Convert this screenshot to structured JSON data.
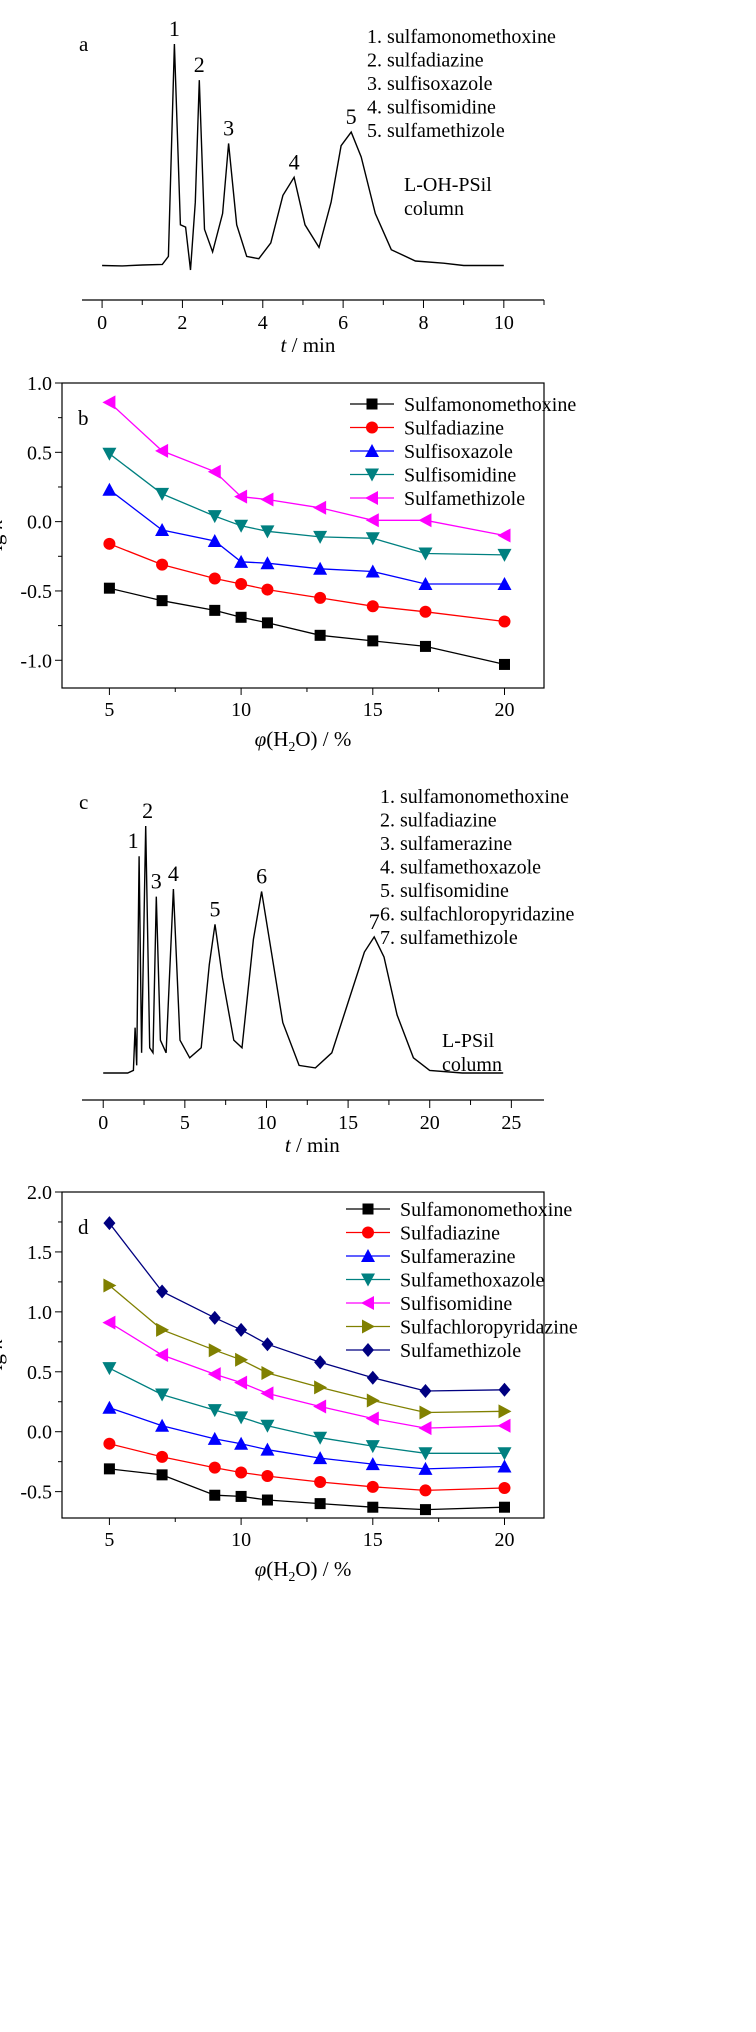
{
  "chart_data": [
    {
      "panel": "a",
      "type": "line",
      "title": "",
      "xlabel_italic": "t",
      "xlabel_rest": " / min",
      "ylabel": "",
      "xlim": [
        -0.5,
        11
      ],
      "xticks": [
        0,
        2,
        4,
        6,
        8,
        10
      ],
      "column_note": [
        "L-OH-PSil",
        "column"
      ],
      "legend": [
        "1. sulfamonomethoxine",
        "2. sulfadiazine",
        "3. sulfisoxazole",
        "4. sulfisomidine",
        "5. sulfamethizole"
      ],
      "baseline": 0.02,
      "points": [
        [
          0,
          0.02
        ],
        [
          0.5,
          0.018
        ],
        [
          1,
          0.022
        ],
        [
          1.5,
          0.025
        ],
        [
          1.65,
          0.06
        ],
        [
          1.8,
          1.0
        ],
        [
          1.95,
          0.2
        ],
        [
          2.08,
          0.19
        ],
        [
          2.2,
          0.0
        ],
        [
          2.32,
          0.3
        ],
        [
          2.42,
          0.84
        ],
        [
          2.55,
          0.18
        ],
        [
          2.75,
          0.08
        ],
        [
          3.0,
          0.25
        ],
        [
          3.15,
          0.56
        ],
        [
          3.35,
          0.2
        ],
        [
          3.6,
          0.06
        ],
        [
          3.9,
          0.05
        ],
        [
          4.2,
          0.12
        ],
        [
          4.5,
          0.33
        ],
        [
          4.78,
          0.41
        ],
        [
          5.05,
          0.2
        ],
        [
          5.4,
          0.1
        ],
        [
          5.7,
          0.3
        ],
        [
          5.95,
          0.55
        ],
        [
          6.2,
          0.61
        ],
        [
          6.45,
          0.5
        ],
        [
          6.8,
          0.25
        ],
        [
          7.2,
          0.09
        ],
        [
          7.8,
          0.04
        ],
        [
          8.5,
          0.03
        ],
        [
          9,
          0.02
        ],
        [
          10,
          0.02
        ]
      ],
      "peaks": [
        {
          "label": "1",
          "t": 1.8,
          "h": 1.0
        },
        {
          "label": "2",
          "t": 2.42,
          "h": 0.84
        },
        {
          "label": "3",
          "t": 3.15,
          "h": 0.56
        },
        {
          "label": "4",
          "t": 4.78,
          "h": 0.41
        },
        {
          "label": "5",
          "t": 6.2,
          "h": 0.61
        }
      ]
    },
    {
      "panel": "b",
      "type": "line",
      "xlabel": "φ(H2O) / %",
      "ylabel": "lg k",
      "xlim": [
        3.2,
        21.5
      ],
      "ylim": [
        -1.2,
        1.0
      ],
      "xticks": [
        5,
        10,
        15,
        20
      ],
      "yticks": [
        "1.0",
        "0.5",
        "0.0",
        "-0.5",
        "-1.0"
      ],
      "ytick_values": [
        1.0,
        0.5,
        0.0,
        -0.5,
        -1.0
      ],
      "x": [
        5,
        7,
        9,
        10,
        11,
        13,
        15,
        17,
        20
      ],
      "series": [
        {
          "name": "Sulfamonomethoxine",
          "color": "#000000",
          "marker": "square",
          "values": [
            -0.48,
            -0.57,
            -0.64,
            -0.69,
            -0.73,
            -0.82,
            -0.86,
            -0.9,
            -1.03
          ]
        },
        {
          "name": "Sulfadiazine",
          "color": "#ff0000",
          "marker": "circle",
          "values": [
            -0.16,
            -0.31,
            -0.41,
            -0.45,
            -0.49,
            -0.55,
            -0.61,
            -0.65,
            -0.72
          ]
        },
        {
          "name": "Sulfisoxazole",
          "color": "#0000ff",
          "marker": "triangle-up",
          "values": [
            0.23,
            -0.06,
            -0.14,
            -0.29,
            -0.3,
            -0.34,
            -0.36,
            -0.45,
            -0.45
          ]
        },
        {
          "name": "Sulfisomidine",
          "color": "#008080",
          "marker": "triangle-down",
          "values": [
            0.49,
            0.2,
            0.04,
            -0.03,
            -0.07,
            -0.11,
            -0.12,
            -0.23,
            -0.24
          ]
        },
        {
          "name": "Sulfamethizole",
          "color": "#ff00ff",
          "marker": "triangle-left",
          "values": [
            0.86,
            0.51,
            0.36,
            0.18,
            0.16,
            0.1,
            0.01,
            0.01,
            -0.1
          ]
        }
      ]
    },
    {
      "panel": "c",
      "type": "line",
      "xlabel_italic": "t",
      "xlabel_rest": " / min",
      "ylabel": "",
      "xlim": [
        -1.3,
        27
      ],
      "xticks": [
        0,
        5,
        10,
        15,
        20,
        25
      ],
      "column_note": [
        "L-PSil",
        "column"
      ],
      "legend": [
        "1. sulfamonomethoxine",
        "2. sulfadiazine",
        "3. sulfamerazine",
        "4. sulfamethoxazole",
        "5. sulfisomidine",
        "6. sulfachloropyridazine",
        "7. sulfamethizole"
      ],
      "baseline": 0.02,
      "points": [
        [
          0,
          0.02
        ],
        [
          1.5,
          0.02
        ],
        [
          1.85,
          0.03
        ],
        [
          1.95,
          0.2
        ],
        [
          2.05,
          0.05
        ],
        [
          2.2,
          0.88
        ],
        [
          2.35,
          0.1
        ],
        [
          2.6,
          1.0
        ],
        [
          2.85,
          0.12
        ],
        [
          3.05,
          0.1
        ],
        [
          3.25,
          0.72
        ],
        [
          3.5,
          0.15
        ],
        [
          3.85,
          0.1
        ],
        [
          4.3,
          0.75
        ],
        [
          4.7,
          0.15
        ],
        [
          5.3,
          0.08
        ],
        [
          6.0,
          0.12
        ],
        [
          6.5,
          0.45
        ],
        [
          6.85,
          0.61
        ],
        [
          7.3,
          0.4
        ],
        [
          8.0,
          0.15
        ],
        [
          8.5,
          0.12
        ],
        [
          9.2,
          0.55
        ],
        [
          9.7,
          0.74
        ],
        [
          10.3,
          0.5
        ],
        [
          11.0,
          0.22
        ],
        [
          12.0,
          0.05
        ],
        [
          13.0,
          0.04
        ],
        [
          14.0,
          0.1
        ],
        [
          15.0,
          0.3
        ],
        [
          16.0,
          0.5
        ],
        [
          16.6,
          0.56
        ],
        [
          17.2,
          0.48
        ],
        [
          18.0,
          0.25
        ],
        [
          19.0,
          0.08
        ],
        [
          20.0,
          0.03
        ],
        [
          22.0,
          0.02
        ],
        [
          24.5,
          0.02
        ]
      ],
      "peaks": [
        {
          "label": "1",
          "t": 2.2,
          "h": 0.88
        },
        {
          "label": "2",
          "t": 2.6,
          "h": 1.0
        },
        {
          "label": "3",
          "t": 3.25,
          "h": 0.72
        },
        {
          "label": "4",
          "t": 4.3,
          "h": 0.75
        },
        {
          "label": "5",
          "t": 6.85,
          "h": 0.61
        },
        {
          "label": "6",
          "t": 9.7,
          "h": 0.74
        },
        {
          "label": "7",
          "t": 16.6,
          "h": 0.56
        }
      ]
    },
    {
      "panel": "d",
      "type": "line",
      "xlabel": "φ(H2O) / %",
      "ylabel": "lg k",
      "xlim": [
        3.2,
        21.5
      ],
      "ylim": [
        -0.72,
        2.0
      ],
      "xticks": [
        5,
        10,
        15,
        20
      ],
      "yticks": [
        "2.0",
        "1.5",
        "1.0",
        "0.5",
        "0.0",
        "-0.5"
      ],
      "ytick_values": [
        2.0,
        1.5,
        1.0,
        0.5,
        0.0,
        -0.5
      ],
      "x": [
        5,
        7,
        9,
        10,
        11,
        13,
        15,
        17,
        20
      ],
      "series": [
        {
          "name": "Sulfamonomethoxine",
          "color": "#000000",
          "marker": "square",
          "values": [
            -0.31,
            -0.36,
            -0.53,
            -0.54,
            -0.57,
            -0.6,
            -0.63,
            -0.65,
            -0.63
          ]
        },
        {
          "name": "Sulfadiazine",
          "color": "#ff0000",
          "marker": "circle",
          "values": [
            -0.1,
            -0.21,
            -0.3,
            -0.34,
            -0.37,
            -0.42,
            -0.46,
            -0.49,
            -0.47
          ]
        },
        {
          "name": "Sulfamerazine",
          "color": "#0000ff",
          "marker": "triangle-up",
          "values": [
            0.2,
            0.05,
            -0.06,
            -0.1,
            -0.15,
            -0.22,
            -0.27,
            -0.31,
            -0.29
          ]
        },
        {
          "name": "Sulfamethoxazole",
          "color": "#008080",
          "marker": "triangle-down",
          "values": [
            0.53,
            0.31,
            0.18,
            0.12,
            0.05,
            -0.05,
            -0.12,
            -0.18,
            -0.18
          ]
        },
        {
          "name": "Sulfisomidine",
          "color": "#ff00ff",
          "marker": "triangle-left",
          "values": [
            0.91,
            0.64,
            0.48,
            0.41,
            0.32,
            0.21,
            0.11,
            0.03,
            0.05
          ]
        },
        {
          "name": "Sulfachloropyridazine",
          "color": "#808000",
          "marker": "triangle-right",
          "values": [
            1.22,
            0.85,
            0.68,
            0.6,
            0.49,
            0.37,
            0.26,
            0.16,
            0.17
          ]
        },
        {
          "name": "Sulfamethizole",
          "color": "#000080",
          "marker": "diamond",
          "values": [
            1.74,
            1.17,
            0.95,
            0.85,
            0.73,
            0.58,
            0.45,
            0.34,
            0.35
          ]
        }
      ]
    }
  ]
}
